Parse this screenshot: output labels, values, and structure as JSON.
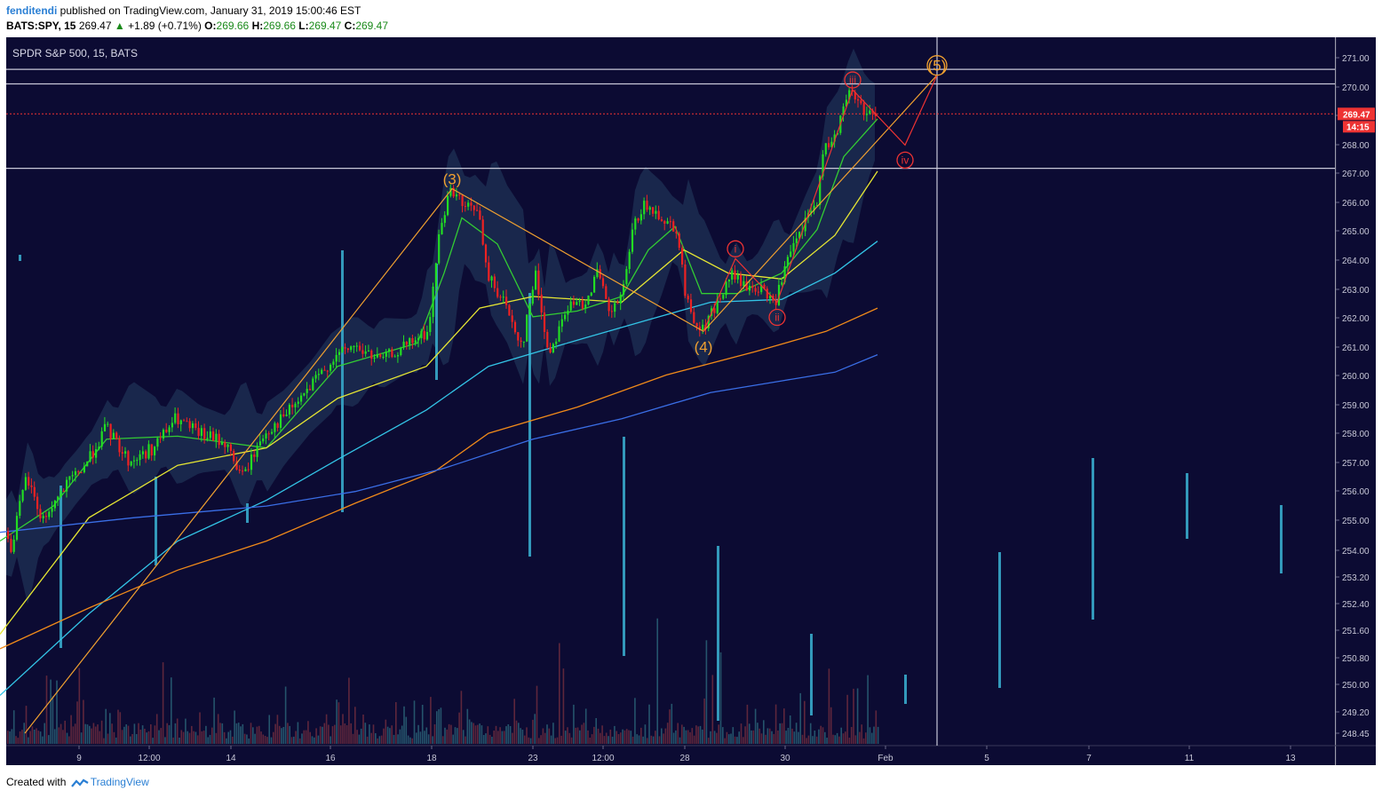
{
  "header": {
    "user": "fenditendi",
    "published_text": "published on TradingView.com, January 31, 2019 15:00:46 EST",
    "symbol": "BATS:SPY, 15",
    "last": "269.47",
    "change": "+1.89 (+0.71%)",
    "o_label": "O:",
    "o_value": "269.66",
    "h_label": "H:",
    "h_value": "269.66",
    "l_label": "L:",
    "l_value": "269.47",
    "c_label": "C:",
    "c_value": "269.47"
  },
  "footer": {
    "created_with": "Created with",
    "brand": "TradingView"
  },
  "colors": {
    "background": "#0c0b33",
    "up_candle": "#22dd22",
    "down_candle": "#ee2222",
    "ema_fast": "#33cc33",
    "ema_mid": "#e6e633",
    "ema_cyan": "#33c4e6",
    "ema_orange": "#f08a1a",
    "ema_blue": "#3a6ee6",
    "wave_major": "#f0a030",
    "wave_minor": "#ee3333",
    "volume_bar": "#3399bb"
  },
  "chart_data": {
    "type": "candlestick",
    "title": "SPDR S&P 500, 15, BATS",
    "ylim": [
      248.2,
      271.4
    ],
    "y_ticks": [
      "271.00",
      "270.00",
      "269.00",
      "268.00",
      "267.00",
      "266.00",
      "265.00",
      "264.00",
      "263.00",
      "262.00",
      "261.00",
      "260.00",
      "259.00",
      "258.00",
      "257.00",
      "256.00",
      "255.00",
      "254.00",
      "253.20",
      "252.40",
      "251.60",
      "250.80",
      "250.00",
      "249.20",
      "248.45"
    ],
    "x_ticks": [
      "9",
      "12:00",
      "14",
      "16",
      "18",
      "23",
      "12:00",
      "28",
      "30",
      "Feb",
      "5",
      "7",
      "11",
      "13"
    ],
    "last_price_label": "269.47",
    "countdown_label": "14:15",
    "horizontal_levels": [
      271.0,
      270.5,
      267.6
    ],
    "price_path": [
      [
        0,
        256.0
      ],
      [
        14,
        254.5
      ],
      [
        32,
        257.0
      ],
      [
        50,
        255.5
      ],
      [
        72,
        256.5
      ],
      [
        100,
        257.5
      ],
      [
        122,
        258.7
      ],
      [
        148,
        257.5
      ],
      [
        175,
        258.0
      ],
      [
        200,
        259.0
      ],
      [
        225,
        258.5
      ],
      [
        255,
        258.2
      ],
      [
        275,
        257.0
      ],
      [
        300,
        258.5
      ],
      [
        320,
        259.0
      ],
      [
        350,
        260.0
      ],
      [
        375,
        261.0
      ],
      [
        400,
        261.5
      ],
      [
        430,
        261.0
      ],
      [
        460,
        261.5
      ],
      [
        485,
        262.0
      ],
      [
        495,
        265.0
      ],
      [
        505,
        266.5
      ],
      [
        512,
        266.9
      ],
      [
        525,
        266.2
      ],
      [
        540,
        266.3
      ],
      [
        550,
        264.0
      ],
      [
        570,
        263.0
      ],
      [
        590,
        261.5
      ],
      [
        605,
        264.0
      ],
      [
        620,
        261.2
      ],
      [
        640,
        262.8
      ],
      [
        660,
        263.0
      ],
      [
        675,
        264.0
      ],
      [
        690,
        262.5
      ],
      [
        705,
        263.5
      ],
      [
        715,
        265.5
      ],
      [
        725,
        266.3
      ],
      [
        745,
        266.0
      ],
      [
        765,
        265.5
      ],
      [
        775,
        263.0
      ],
      [
        792,
        262.0
      ],
      [
        810,
        263.0
      ],
      [
        828,
        264.0
      ],
      [
        840,
        263.5
      ],
      [
        855,
        263.5
      ],
      [
        875,
        263.0
      ],
      [
        890,
        264.5
      ],
      [
        910,
        265.8
      ],
      [
        922,
        266.5
      ],
      [
        930,
        268.2
      ],
      [
        945,
        269.0
      ],
      [
        960,
        270.3
      ],
      [
        975,
        269.6
      ],
      [
        988,
        269.5
      ]
    ],
    "indicators": {
      "ema_fast": [
        [
          0,
          254.8
        ],
        [
          60,
          256.0
        ],
        [
          120,
          258.3
        ],
        [
          200,
          258.4
        ],
        [
          300,
          258.0
        ],
        [
          380,
          260.8
        ],
        [
          470,
          261.6
        ],
        [
          500,
          264.0
        ],
        [
          520,
          265.9
        ],
        [
          560,
          265.0
        ],
        [
          600,
          262.5
        ],
        [
          650,
          262.7
        ],
        [
          700,
          263.2
        ],
        [
          730,
          264.8
        ],
        [
          760,
          265.6
        ],
        [
          790,
          263.3
        ],
        [
          830,
          263.3
        ],
        [
          880,
          264.0
        ],
        [
          920,
          265.5
        ],
        [
          950,
          268.0
        ],
        [
          988,
          269.3
        ]
      ],
      "ema_mid": [
        [
          0,
          251.6
        ],
        [
          100,
          255.6
        ],
        [
          200,
          257.4
        ],
        [
          300,
          258.0
        ],
        [
          380,
          259.7
        ],
        [
          480,
          260.8
        ],
        [
          540,
          262.8
        ],
        [
          600,
          263.2
        ],
        [
          700,
          263.0
        ],
        [
          770,
          264.8
        ],
        [
          820,
          264.0
        ],
        [
          880,
          263.8
        ],
        [
          940,
          265.3
        ],
        [
          988,
          267.5
        ]
      ],
      "ema_cyan": [
        [
          0,
          249.5
        ],
        [
          100,
          252.3
        ],
        [
          200,
          254.8
        ],
        [
          300,
          256.2
        ],
        [
          380,
          257.6
        ],
        [
          480,
          259.3
        ],
        [
          550,
          260.8
        ],
        [
          650,
          261.7
        ],
        [
          730,
          262.4
        ],
        [
          800,
          263.0
        ],
        [
          880,
          263.1
        ],
        [
          940,
          264.0
        ],
        [
          988,
          265.1
        ]
      ],
      "ema_orange": [
        [
          0,
          251.1
        ],
        [
          100,
          252.5
        ],
        [
          200,
          253.8
        ],
        [
          300,
          254.8
        ],
        [
          400,
          256.1
        ],
        [
          490,
          257.2
        ],
        [
          550,
          258.5
        ],
        [
          650,
          259.4
        ],
        [
          750,
          260.5
        ],
        [
          850,
          261.3
        ],
        [
          930,
          262.0
        ],
        [
          988,
          262.8
        ]
      ],
      "ema_blue": [
        [
          0,
          255.1
        ],
        [
          150,
          255.6
        ],
        [
          300,
          256.0
        ],
        [
          400,
          256.5
        ],
        [
          500,
          257.3
        ],
        [
          600,
          258.3
        ],
        [
          700,
          259.0
        ],
        [
          800,
          259.9
        ],
        [
          880,
          260.3
        ],
        [
          940,
          260.6
        ],
        [
          988,
          261.2
        ]
      ]
    },
    "wave_labels": [
      {
        "label": "(3)",
        "x": 509,
        "price": 266.9
      },
      {
        "label": "(4)",
        "x": 792,
        "price": 262.0
      },
      {
        "label": "(5)",
        "x": 1055,
        "price": 270.8
      },
      {
        "label": "i",
        "x": 828,
        "price": 264.5
      },
      {
        "label": "ii",
        "x": 875,
        "price": 263.0
      },
      {
        "label": "iii",
        "x": 960,
        "price": 270.3
      },
      {
        "label": "iv",
        "x": 1019,
        "price": 268.4
      }
    ],
    "wave_major_path": [
      [
        28,
        248.2
      ],
      [
        509,
        266.9
      ],
      [
        792,
        262.0
      ],
      [
        1055,
        270.8
      ]
    ],
    "wave_minor_path": [
      [
        792,
        262.0
      ],
      [
        828,
        264.5
      ],
      [
        875,
        263.0
      ],
      [
        960,
        270.3
      ],
      [
        1019,
        268.4
      ],
      [
        1055,
        270.8
      ]
    ],
    "projection_vline_x": 1055,
    "volume_profile": [
      {
        "x": 22,
        "top": 245,
        "bottom": 252
      },
      {
        "x": 68,
        "top": 505,
        "bottom": 688
      },
      {
        "x": 175,
        "top": 495,
        "bottom": 595
      },
      {
        "x": 278,
        "top": 525,
        "bottom": 547
      },
      {
        "x": 385,
        "top": 240,
        "bottom": 535
      },
      {
        "x": 491,
        "top": 255,
        "bottom": 386
      },
      {
        "x": 596,
        "top": 288,
        "bottom": 585
      },
      {
        "x": 702,
        "top": 450,
        "bottom": 697
      },
      {
        "x": 808,
        "top": 573,
        "bottom": 770
      },
      {
        "x": 913,
        "top": 672,
        "bottom": 764
      },
      {
        "x": 1019,
        "top": 718,
        "bottom": 751
      },
      {
        "x": 1125,
        "top": 580,
        "bottom": 733
      },
      {
        "x": 1230,
        "top": 474,
        "bottom": 656
      },
      {
        "x": 1336,
        "top": 491,
        "bottom": 565
      },
      {
        "x": 1442,
        "top": 527,
        "bottom": 604
      }
    ]
  }
}
